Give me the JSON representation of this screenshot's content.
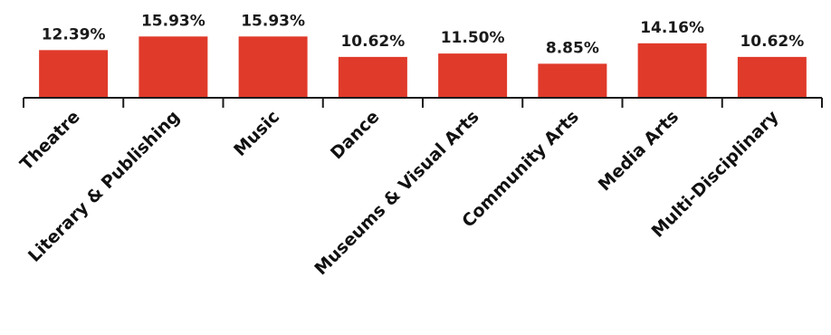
{
  "chart_data": {
    "type": "bar",
    "title": "",
    "xlabel": "",
    "ylabel": "",
    "categories": [
      "Theatre",
      "Literary & Publishing",
      "Music",
      "Dance",
      "Museums & Visual Arts",
      "Community Arts",
      "Media Arts",
      "Multi-Disciplinary"
    ],
    "values": [
      12.39,
      15.93,
      15.93,
      10.62,
      11.5,
      8.85,
      14.16,
      10.62
    ],
    "value_labels": [
      "12.39%",
      "15.93%",
      "15.93%",
      "10.62%",
      "11.50%",
      "8.85%",
      "14.16%",
      "10.62%"
    ],
    "unit": "%",
    "ylim": [
      0,
      16
    ],
    "grid": false,
    "legend": "none",
    "bar_color": "#e03a2a",
    "axis_color": "#1a1a1a"
  }
}
